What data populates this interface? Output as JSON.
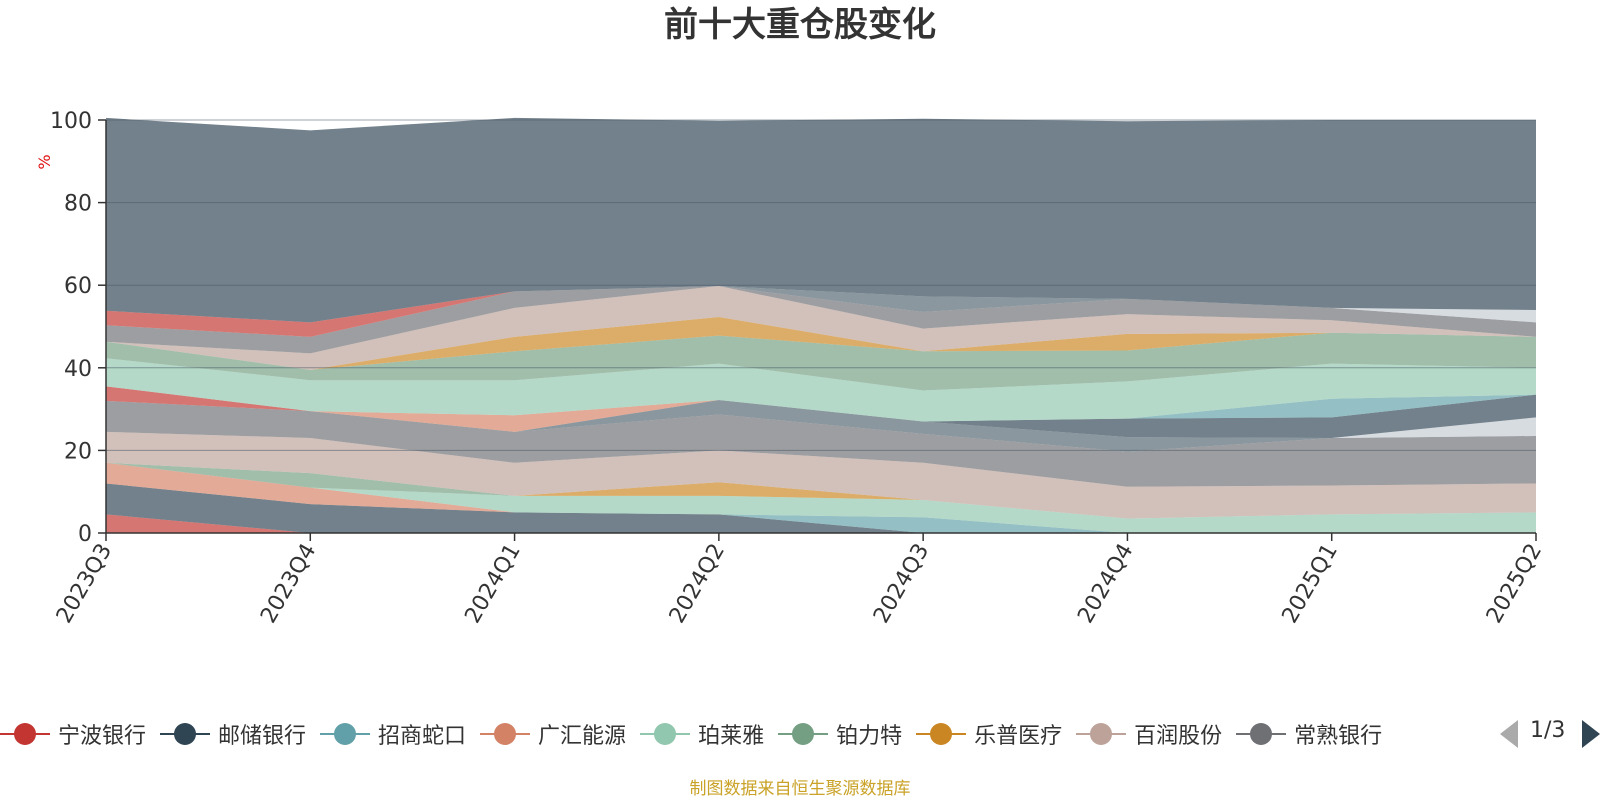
{
  "title": "前十大重仓股变化",
  "footer": "制图数据来自恒生聚源数据库",
  "legend_pager": "1/3",
  "chart_data": {
    "type": "area",
    "stacked": true,
    "ylabel": "%",
    "ylim": [
      0,
      100
    ],
    "yticks": [
      0,
      20,
      40,
      60,
      80,
      100
    ],
    "grid": true,
    "categories": [
      "2023Q3",
      "2023Q4",
      "2024Q1",
      "2024Q2",
      "2024Q3",
      "2024Q4",
      "2025Q1",
      "2025Q2"
    ],
    "legend_position": "bottom",
    "series": [
      {
        "name": "宁波银行",
        "color": "#c23531",
        "values": [
          4.5,
          0,
          0,
          0,
          0,
          0,
          0,
          0
        ]
      },
      {
        "name": "邮储银行",
        "color": "#2f4554",
        "values": [
          7.5,
          7.0,
          5.0,
          4.5,
          0,
          0,
          0,
          0
        ]
      },
      {
        "name": "招商蛇口",
        "color": "#61a0a8",
        "values": [
          0,
          0,
          0,
          0,
          3.8,
          0,
          0,
          0
        ]
      },
      {
        "name": "广汇能源",
        "color": "#d48265",
        "values": [
          5.0,
          4.0,
          0,
          0,
          0,
          0,
          0,
          0
        ]
      },
      {
        "name": "珀莱雅",
        "color": "#91c7ae",
        "values": [
          0,
          0,
          4.0,
          4.5,
          4.2,
          3.5,
          4.5,
          5.0
        ]
      },
      {
        "name": "铂力特",
        "color": "#749f83",
        "values": [
          0,
          3.5,
          0,
          0,
          0,
          0,
          0,
          0
        ]
      },
      {
        "name": "乐普医疗",
        "color": "#ca8622",
        "values": [
          0,
          0,
          0,
          3.3,
          0,
          0,
          0,
          0
        ]
      },
      {
        "name": "百润股份",
        "color": "#bda29a",
        "values": [
          7.5,
          8.5,
          8.0,
          7.7,
          9.0,
          7.7,
          7.0,
          7.0
        ]
      },
      {
        "name": "常熟银行",
        "color": "#6e7074",
        "values": [
          7.5,
          6.5,
          7.5,
          8.7,
          7.0,
          8.5,
          11.5,
          11.5
        ]
      },
      {
        "name": "",
        "color": "#546570",
        "values": [
          0,
          0,
          0,
          3.5,
          3.0,
          3.5,
          0,
          0
        ]
      },
      {
        "name": "",
        "color": "#c4ccd3",
        "values": [
          0,
          0,
          0,
          0,
          0,
          0,
          0,
          4.5
        ]
      },
      {
        "name": "",
        "color": "#2f4554",
        "values": [
          0,
          0,
          0,
          0,
          0,
          4.5,
          5.0,
          5.5
        ]
      },
      {
        "name": "",
        "color": "#61a0a8",
        "values": [
          0,
          0,
          0,
          0,
          0,
          0,
          4.5,
          0
        ]
      },
      {
        "name": "",
        "color": "#c23531",
        "values": [
          3.5,
          0,
          0,
          0,
          0,
          0,
          0,
          0
        ]
      },
      {
        "name": "",
        "color": "#d48265",
        "values": [
          0,
          0,
          4.0,
          0,
          0,
          0,
          0,
          0
        ]
      },
      {
        "name": "",
        "color": "#91c7ae",
        "values": [
          6.8,
          7.5,
          8.5,
          8.8,
          7.5,
          9.0,
          8.5,
          6.5
        ]
      },
      {
        "name": "",
        "color": "#749f83",
        "values": [
          4.0,
          2.5,
          7.0,
          6.8,
          9.5,
          7.5,
          7.5,
          7.5
        ]
      },
      {
        "name": "",
        "color": "#ca8622",
        "values": [
          0,
          0,
          3.5,
          4.5,
          0,
          4.0,
          0,
          0
        ]
      },
      {
        "name": "",
        "color": "#bda29a",
        "values": [
          0,
          4.0,
          7.0,
          7.5,
          5.5,
          4.8,
          3.0,
          0
        ]
      },
      {
        "name": "",
        "color": "#6e7074",
        "values": [
          4.0,
          4.0,
          4.0,
          0,
          4.0,
          3.7,
          3.0,
          3.5
        ]
      },
      {
        "name": "",
        "color": "#c4ccd3",
        "values": [
          0,
          0,
          0,
          0,
          0,
          0,
          0,
          3.0
        ]
      },
      {
        "name": "",
        "color": "#c23531",
        "values": [
          3.5,
          3.5,
          0,
          0,
          0,
          0,
          0,
          0
        ]
      },
      {
        "name": "",
        "color": "#546570",
        "values": [
          0,
          0,
          0,
          0,
          3.8,
          0,
          0,
          0
        ]
      },
      {
        "name": "",
        "color": "#2f4554",
        "values": [
          46.7,
          46.5,
          42.0,
          40.0,
          43.0,
          43.0,
          45.5,
          46.0
        ]
      }
    ]
  }
}
